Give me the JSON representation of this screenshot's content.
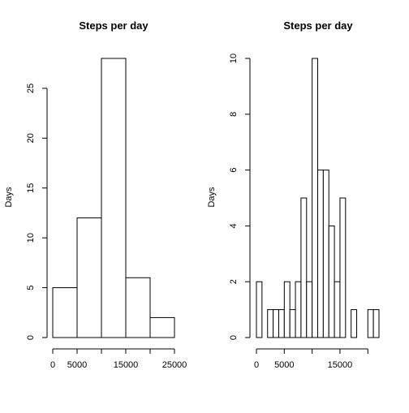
{
  "chart_data": [
    {
      "type": "bar",
      "title": "Steps per day",
      "xlabel": "",
      "ylabel": "Days",
      "bin_edges": [
        0,
        5000,
        10000,
        15000,
        20000,
        25000
      ],
      "values": [
        5,
        12,
        28,
        6,
        2
      ],
      "xlim": [
        0,
        25000
      ],
      "ylim": [
        0,
        28
      ],
      "x_ticks": [
        0,
        5000,
        10000,
        15000,
        20000,
        25000
      ],
      "x_tick_labels": [
        "0",
        "5000",
        "",
        "15000",
        "",
        "25000"
      ],
      "y_ticks": [
        0,
        5,
        10,
        15,
        20,
        25
      ],
      "y_tick_labels": [
        "0",
        "5",
        "10",
        "15",
        "20",
        "25"
      ],
      "grid": false
    },
    {
      "type": "bar",
      "title": "Steps per day",
      "xlabel": "",
      "ylabel": "Days",
      "bin_edges": [
        0,
        1000,
        2000,
        3000,
        4000,
        5000,
        6000,
        7000,
        8000,
        9000,
        10000,
        11000,
        12000,
        13000,
        14000,
        15000,
        16000,
        17000,
        18000,
        19000,
        20000,
        21000,
        22000
      ],
      "values": [
        2,
        0,
        1,
        1,
        1,
        2,
        1,
        2,
        5,
        2,
        10,
        6,
        6,
        4,
        2,
        5,
        0,
        1,
        0,
        0,
        1,
        1
      ],
      "xlim": [
        0,
        22000
      ],
      "ylim": [
        0,
        10
      ],
      "x_ticks": [
        0,
        5000,
        10000,
        15000,
        20000
      ],
      "x_tick_labels": [
        "0",
        "5000",
        "",
        "15000",
        ""
      ],
      "y_ticks": [
        0,
        2,
        4,
        6,
        8,
        10
      ],
      "y_tick_labels": [
        "0",
        "2",
        "4",
        "6",
        "8",
        "10"
      ],
      "grid": false
    }
  ]
}
